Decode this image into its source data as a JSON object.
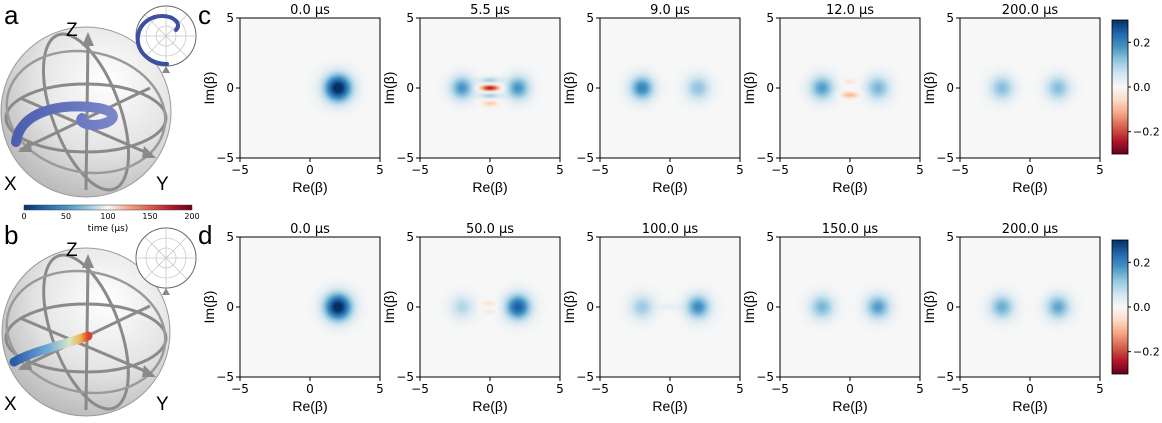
{
  "panel_letters": [
    "a",
    "b",
    "c",
    "d"
  ],
  "bloch": {
    "axis_labels": {
      "z": "Z",
      "x": "X",
      "y": "Y"
    },
    "time_colorbar": {
      "label": "time (μs)",
      "ticks": [
        "0",
        "50",
        "100",
        "150",
        "200"
      ],
      "colors": [
        "#08306b",
        "#2166ac",
        "#4393c3",
        "#92c5de",
        "#f7f7f7",
        "#f4a582",
        "#d6604d",
        "#b2182b",
        "#67001f"
      ]
    }
  },
  "chart_data": {
    "type": "heatmap",
    "description_axes": {
      "xlabel": "Re(β)",
      "ylabel": "Im(β)",
      "xlim": [
        -5,
        5
      ],
      "ylim": [
        -5,
        5
      ],
      "xticks": [
        "−5",
        "0",
        "5"
      ],
      "yticks": [
        "−5",
        "0",
        "5"
      ]
    },
    "colorbar": {
      "range": [
        -0.3,
        0.3
      ],
      "ticks": [
        0.2,
        0.0,
        -0.2
      ],
      "tick_labels": [
        "0.2",
        "0.0",
        "−0.2"
      ],
      "colors": [
        "#67001f",
        "#b2182b",
        "#d6604d",
        "#f4a582",
        "#fddbc7",
        "#f7f7f7",
        "#d1e5f0",
        "#92c5de",
        "#4393c3",
        "#2166ac",
        "#053061"
      ]
    },
    "rows": [
      {
        "row_letter": "c",
        "panels": [
          {
            "title": "0.0 μs",
            "blobs": [
              {
                "x": 2.0,
                "y": 0.0,
                "a": 0.32,
                "sx": 0.7,
                "sy": 0.7
              }
            ]
          },
          {
            "title": "5.5 μs",
            "blobs": [
              {
                "x": -2.0,
                "y": 0.0,
                "a": 0.18,
                "sx": 0.6,
                "sy": 0.6
              },
              {
                "x": 2.0,
                "y": 0.0,
                "a": 0.18,
                "sx": 0.6,
                "sy": 0.6
              },
              {
                "x": 0.0,
                "y": 0.0,
                "a": -0.24,
                "sx": 0.5,
                "sy": 0.16
              },
              {
                "x": 0.0,
                "y": 0.55,
                "a": 0.1,
                "sx": 0.5,
                "sy": 0.16
              },
              {
                "x": 0.0,
                "y": -0.55,
                "a": 0.1,
                "sx": 0.5,
                "sy": 0.16
              },
              {
                "x": 0.0,
                "y": -1.1,
                "a": -0.08,
                "sx": 0.4,
                "sy": 0.15
              }
            ]
          },
          {
            "title": "9.0 μs",
            "blobs": [
              {
                "x": -2.0,
                "y": 0.0,
                "a": 0.2,
                "sx": 0.62,
                "sy": 0.62
              },
              {
                "x": 2.0,
                "y": 0.0,
                "a": 0.12,
                "sx": 0.62,
                "sy": 0.62
              }
            ]
          },
          {
            "title": "12.0 μs",
            "blobs": [
              {
                "x": -2.0,
                "y": 0.0,
                "a": 0.17,
                "sx": 0.62,
                "sy": 0.62
              },
              {
                "x": 2.0,
                "y": 0.0,
                "a": 0.14,
                "sx": 0.62,
                "sy": 0.62
              },
              {
                "x": 0.0,
                "y": -0.5,
                "a": -0.1,
                "sx": 0.5,
                "sy": 0.16
              },
              {
                "x": 0.0,
                "y": 0.45,
                "a": -0.04,
                "sx": 0.4,
                "sy": 0.14
              }
            ]
          },
          {
            "title": "200.0 μs",
            "blobs": [
              {
                "x": -2.0,
                "y": 0.0,
                "a": 0.13,
                "sx": 0.62,
                "sy": 0.62
              },
              {
                "x": 2.0,
                "y": 0.0,
                "a": 0.13,
                "sx": 0.62,
                "sy": 0.62
              }
            ]
          }
        ]
      },
      {
        "row_letter": "d",
        "panels": [
          {
            "title": "0.0 μs",
            "blobs": [
              {
                "x": 2.0,
                "y": 0.0,
                "a": 0.32,
                "sx": 0.7,
                "sy": 0.7
              }
            ]
          },
          {
            "title": "50.0 μs",
            "blobs": [
              {
                "x": -2.0,
                "y": 0.0,
                "a": 0.09,
                "sx": 0.6,
                "sy": 0.6
              },
              {
                "x": 2.0,
                "y": 0.0,
                "a": 0.25,
                "sx": 0.65,
                "sy": 0.65
              },
              {
                "x": 0.0,
                "y": 0.25,
                "a": -0.04,
                "sx": 0.45,
                "sy": 0.14
              },
              {
                "x": 0.0,
                "y": -0.35,
                "a": -0.03,
                "sx": 0.45,
                "sy": 0.14
              }
            ]
          },
          {
            "title": "100.0 μs",
            "blobs": [
              {
                "x": -2.0,
                "y": 0.0,
                "a": 0.11,
                "sx": 0.62,
                "sy": 0.62
              },
              {
                "x": 2.0,
                "y": 0.0,
                "a": 0.19,
                "sx": 0.62,
                "sy": 0.62
              },
              {
                "x": 0.0,
                "y": 0.0,
                "a": 0.03,
                "sx": 0.5,
                "sy": 0.15
              }
            ]
          },
          {
            "title": "150.0 μs",
            "blobs": [
              {
                "x": -2.0,
                "y": 0.0,
                "a": 0.14,
                "sx": 0.62,
                "sy": 0.62
              },
              {
                "x": 2.0,
                "y": 0.0,
                "a": 0.17,
                "sx": 0.62,
                "sy": 0.62
              }
            ]
          },
          {
            "title": "200.0 μs",
            "blobs": [
              {
                "x": -2.0,
                "y": 0.0,
                "a": 0.15,
                "sx": 0.62,
                "sy": 0.62
              },
              {
                "x": 2.0,
                "y": 0.0,
                "a": 0.16,
                "sx": 0.62,
                "sy": 0.62
              }
            ]
          }
        ]
      }
    ]
  }
}
